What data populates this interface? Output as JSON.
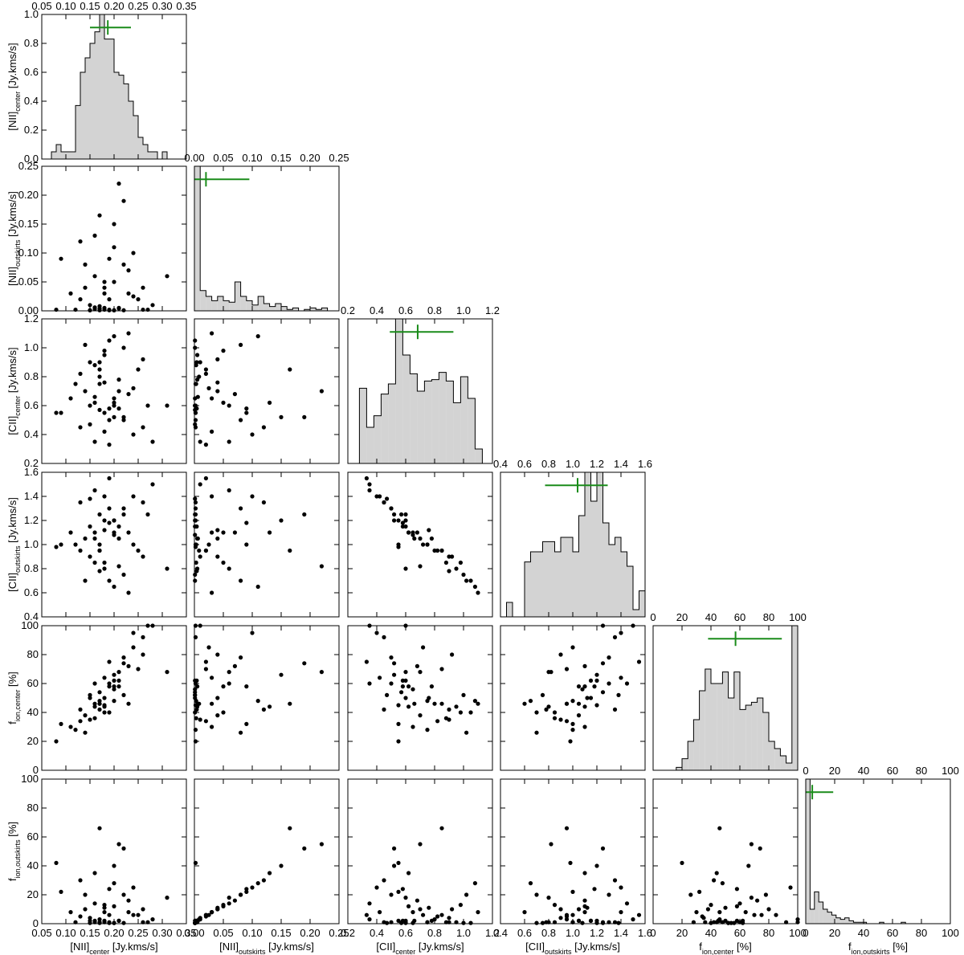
{
  "chart_data": {
    "type": "corner",
    "hist_color": "#d3d3d3",
    "point_color": "#000000",
    "estimate_color": "#1a8c1a",
    "hist_ylim": [
      0,
      1
    ],
    "hist_yticks": [
      {
        "value": 0,
        "label": "0.0"
      },
      0.2,
      0.4,
      0.6,
      0.8,
      {
        "value": 1,
        "label": "1.0"
      }
    ],
    "variables": [
      {
        "label": {
          "main": "[NII]",
          "sub": "center",
          "unit": " [Jy.kms/s]"
        },
        "lim": [
          0.05,
          0.35
        ],
        "ticks": [
          0.05,
          {
            "value": 0.1,
            "label": "0.10"
          },
          0.15,
          {
            "value": 0.2,
            "label": "0.20"
          },
          0.25,
          {
            "value": 0.3,
            "label": "0.30"
          },
          0.35
        ],
        "bins": [
          0.07,
          0.08,
          0.09,
          0.1,
          0.11,
          0.12,
          0.13,
          0.14,
          0.15,
          0.16,
          0.17,
          0.18,
          0.19,
          0.2,
          0.21,
          0.22,
          0.23,
          0.24,
          0.25,
          0.26,
          0.27,
          0.28,
          0.29,
          0.3,
          0.31,
          0.32
        ],
        "counts": [
          0.05,
          0.1,
          0.05,
          0.05,
          0.05,
          0.37,
          0.6,
          0.7,
          0.8,
          0.88,
          1.0,
          0.83,
          0.83,
          0.6,
          0.58,
          0.52,
          0.4,
          0.3,
          0.15,
          0.1,
          0.05,
          0.05,
          0,
          0.05,
          0
        ],
        "estimate": {
          "value": 0.187,
          "low": 0.15,
          "high": 0.235
        },
        "samples": [
          0.18,
          0.2,
          0.15,
          0.22,
          0.17,
          0.13,
          0.25,
          0.19,
          0.16,
          0.21,
          0.11,
          0.24,
          0.18,
          0.14,
          0.27,
          0.2,
          0.17,
          0.09,
          0.22,
          0.19,
          0.16,
          0.23,
          0.15,
          0.26,
          0.12,
          0.2,
          0.18,
          0.31,
          0.17,
          0.21,
          0.14,
          0.19,
          0.24,
          0.16,
          0.08,
          0.28,
          0.18,
          0.2,
          0.13,
          0.22,
          0.17,
          0.19,
          0.15,
          0.23,
          0.21,
          0.16,
          0.17,
          0.26,
          0.18,
          0.2
        ]
      },
      {
        "label": {
          "main": "[NII]",
          "sub": "outskirts",
          "unit": " [Jy.kms/s]"
        },
        "lim": [
          0,
          0.25
        ],
        "ticks": [
          {
            "value": 0,
            "label": "0.00"
          },
          0.05,
          {
            "value": 0.1,
            "label": "0.10"
          },
          0.15,
          {
            "value": 0.2,
            "label": "0.20"
          },
          0.25
        ],
        "bins": [
          0,
          0.01,
          0.02,
          0.03,
          0.04,
          0.05,
          0.06,
          0.07,
          0.08,
          0.09,
          0.1,
          0.11,
          0.12,
          0.13,
          0.14,
          0.15,
          0.16,
          0.17,
          0.18,
          0.19,
          0.2,
          0.21,
          0.22,
          0.23
        ],
        "counts": [
          1.0,
          0.14,
          0.1,
          0.07,
          0.1,
          0.07,
          0.06,
          0.2,
          0.1,
          0.07,
          0.04,
          0.1,
          0.05,
          0.03,
          0.05,
          0.03,
          0.01,
          0.02,
          0,
          0.01,
          0.02,
          0.01,
          0.02
        ],
        "estimate": {
          "value": 0.02,
          "low": 0,
          "high": 0.095
        },
        "samples": [
          0.002,
          0.05,
          0.01,
          0.08,
          0.003,
          0.12,
          0.02,
          0.001,
          0.06,
          0.004,
          0.03,
          0.1,
          0.005,
          0.04,
          0.002,
          0.15,
          0.008,
          0.09,
          0.001,
          0.02,
          0.003,
          0.07,
          0.001,
          0.04,
          0.002,
          0.11,
          0.03,
          0.06,
          0.001,
          0.005,
          0.08,
          0.002,
          0.025,
          0.13,
          0.002,
          0.01,
          0.05,
          0.001,
          0.02,
          0.19,
          0.004,
          0.09,
          0.001,
          0.03,
          0.22,
          0.006,
          0.165,
          0.002,
          0.04,
          0.001
        ]
      },
      {
        "label": {
          "main": "[CII]",
          "sub": "center",
          "unit": " [Jy.kms/s]"
        },
        "lim": [
          0.2,
          1.2
        ],
        "ticks": [
          0.2,
          0.4,
          0.6,
          0.8,
          {
            "value": 1,
            "label": "1.0"
          },
          1.2
        ],
        "bins": [
          0.28,
          0.33,
          0.38,
          0.43,
          0.48,
          0.53,
          0.58,
          0.63,
          0.68,
          0.73,
          0.78,
          0.83,
          0.88,
          0.93,
          0.98,
          1.03,
          1.08,
          1.13
        ],
        "counts": [
          0.52,
          0.25,
          0.33,
          0.48,
          0.55,
          1.0,
          0.75,
          0.62,
          0.5,
          0.57,
          0.58,
          0.63,
          0.57,
          0.42,
          0.6,
          0.45,
          0.1
        ],
        "estimate": {
          "value": 0.683,
          "low": 0.49,
          "high": 0.93
        },
        "samples": [
          0.55,
          0.62,
          0.9,
          0.5,
          0.75,
          0.45,
          0.85,
          1.05,
          0.35,
          0.58,
          0.65,
          0.4,
          0.95,
          0.7,
          0.6,
          0.52,
          0.8,
          0.55,
          1.0,
          0.33,
          0.88,
          0.68,
          0.6,
          0.92,
          0.75,
          1.08,
          0.42,
          0.6,
          0.57,
          0.78,
          1.02,
          0.5,
          0.72,
          0.62,
          0.55,
          0.35,
          0.98,
          0.65,
          0.82,
          0.52,
          0.9,
          0.58,
          0.47,
          1.1,
          0.7,
          0.66,
          0.85,
          0.45,
          0.76,
          0.6
        ]
      },
      {
        "label": {
          "main": "[CII]",
          "sub": "outskirts",
          "unit": " [Jy.kms/s]"
        },
        "lim": [
          0.4,
          1.6
        ],
        "ticks": [
          0.4,
          0.6,
          0.8,
          {
            "value": 1,
            "label": "1.0"
          },
          1.2,
          1.4,
          1.6
        ],
        "bins": [
          0.45,
          0.5,
          0.55,
          0.6,
          0.65,
          0.7,
          0.75,
          0.8,
          0.85,
          0.9,
          0.95,
          1.0,
          1.05,
          1.1,
          1.15,
          1.2,
          1.25,
          1.3,
          1.35,
          1.4,
          1.45,
          1.5,
          1.55,
          1.6
        ],
        "counts": [
          0.1,
          0,
          0,
          0.38,
          0.45,
          0.45,
          0.52,
          0.52,
          0.45,
          0.55,
          0.55,
          0.45,
          0.7,
          1.0,
          0.8,
          1.0,
          0.65,
          0.5,
          0.55,
          0.45,
          0.35,
          0.05,
          0.18
        ],
        "estimate": {
          "value": 1.04,
          "low": 0.77,
          "high": 1.29
        },
        "samples": [
          1.2,
          1.1,
          0.9,
          1.3,
          1.0,
          1.35,
          0.95,
          0.7,
          1.45,
          1.15,
          1.1,
          1.4,
          0.8,
          1.05,
          1.25,
          1.2,
          0.95,
          1.0,
          0.75,
          1.55,
          0.85,
          1.1,
          1.15,
          0.9,
          1.0,
          0.65,
          1.4,
          0.8,
          1.25,
          1.05,
          0.7,
          1.3,
          1.0,
          1.1,
          0.98,
          1.5,
          0.85,
          1.08,
          0.95,
          1.25,
          0.78,
          1.18,
          1.38,
          0.6,
          0.82,
          1.05,
          0.95,
          1.35,
          1.12,
          1.2
        ]
      },
      {
        "label": {
          "main": "f",
          "sub": "ion,center",
          "unit": " [%]"
        },
        "lim": [
          0,
          100
        ],
        "ticks": [
          0,
          20,
          40,
          60,
          80,
          100
        ],
        "bins": [
          16,
          20,
          24,
          28,
          32,
          36,
          40,
          44,
          48,
          52,
          56,
          60,
          64,
          68,
          72,
          76,
          80,
          84,
          88,
          92,
          96,
          100
        ],
        "counts": [
          0.02,
          0.08,
          0.2,
          0.35,
          0.55,
          0.7,
          0.6,
          0.6,
          0.68,
          0.5,
          0.68,
          0.42,
          0.45,
          0.47,
          0.5,
          0.4,
          0.2,
          0.15,
          0.1,
          0.05,
          1.0
        ],
        "estimate": {
          "value": 57,
          "low": 38,
          "high": 89
        },
        "samples": [
          45,
          58,
          35,
          78,
          48,
          42,
          70,
          40,
          60,
          62,
          30,
          95,
          44,
          38,
          100,
          66,
          46,
          32,
          52,
          75,
          36,
          72,
          50,
          80,
          28,
          48,
          64,
          68,
          54,
          58,
          26,
          60,
          85,
          44,
          20,
          100,
          40,
          56,
          34,
          74,
          42,
          58,
          52,
          46,
          68,
          46,
          46,
          92,
          50,
          62
        ]
      },
      {
        "label": {
          "main": "f",
          "sub": "ion,outskirts",
          "unit": " [%]"
        },
        "lim": [
          0,
          100
        ],
        "ticks": [
          0,
          20,
          40,
          60,
          80,
          100
        ],
        "bins": [
          0,
          3,
          6,
          9,
          12,
          15,
          18,
          21,
          24,
          27,
          30,
          33,
          36,
          39,
          42,
          45,
          48,
          51,
          54,
          57,
          60,
          63,
          66,
          69
        ],
        "counts": [
          1.0,
          0.1,
          0.22,
          0.15,
          0.1,
          0.08,
          0.06,
          0.04,
          0.03,
          0.04,
          0.02,
          0.01,
          0.01,
          0.01,
          0,
          0,
          0,
          0.01,
          0,
          0,
          0,
          0,
          0.01
        ],
        "estimate": {
          "value": 4.5,
          "low": 0,
          "high": 19
        },
        "samples": [
          2,
          12,
          4,
          20,
          1,
          30,
          6,
          0.5,
          14,
          2,
          8,
          25,
          1,
          10,
          1,
          40,
          3,
          22,
          0.5,
          6,
          1,
          16,
          2,
          10,
          1,
          28,
          8,
          18,
          0.5,
          2,
          20,
          1,
          6,
          35,
          42,
          3,
          13,
          0.5,
          5,
          52,
          1,
          24,
          0.5,
          8,
          55,
          2,
          66,
          1,
          11,
          0.5
        ]
      }
    ]
  }
}
